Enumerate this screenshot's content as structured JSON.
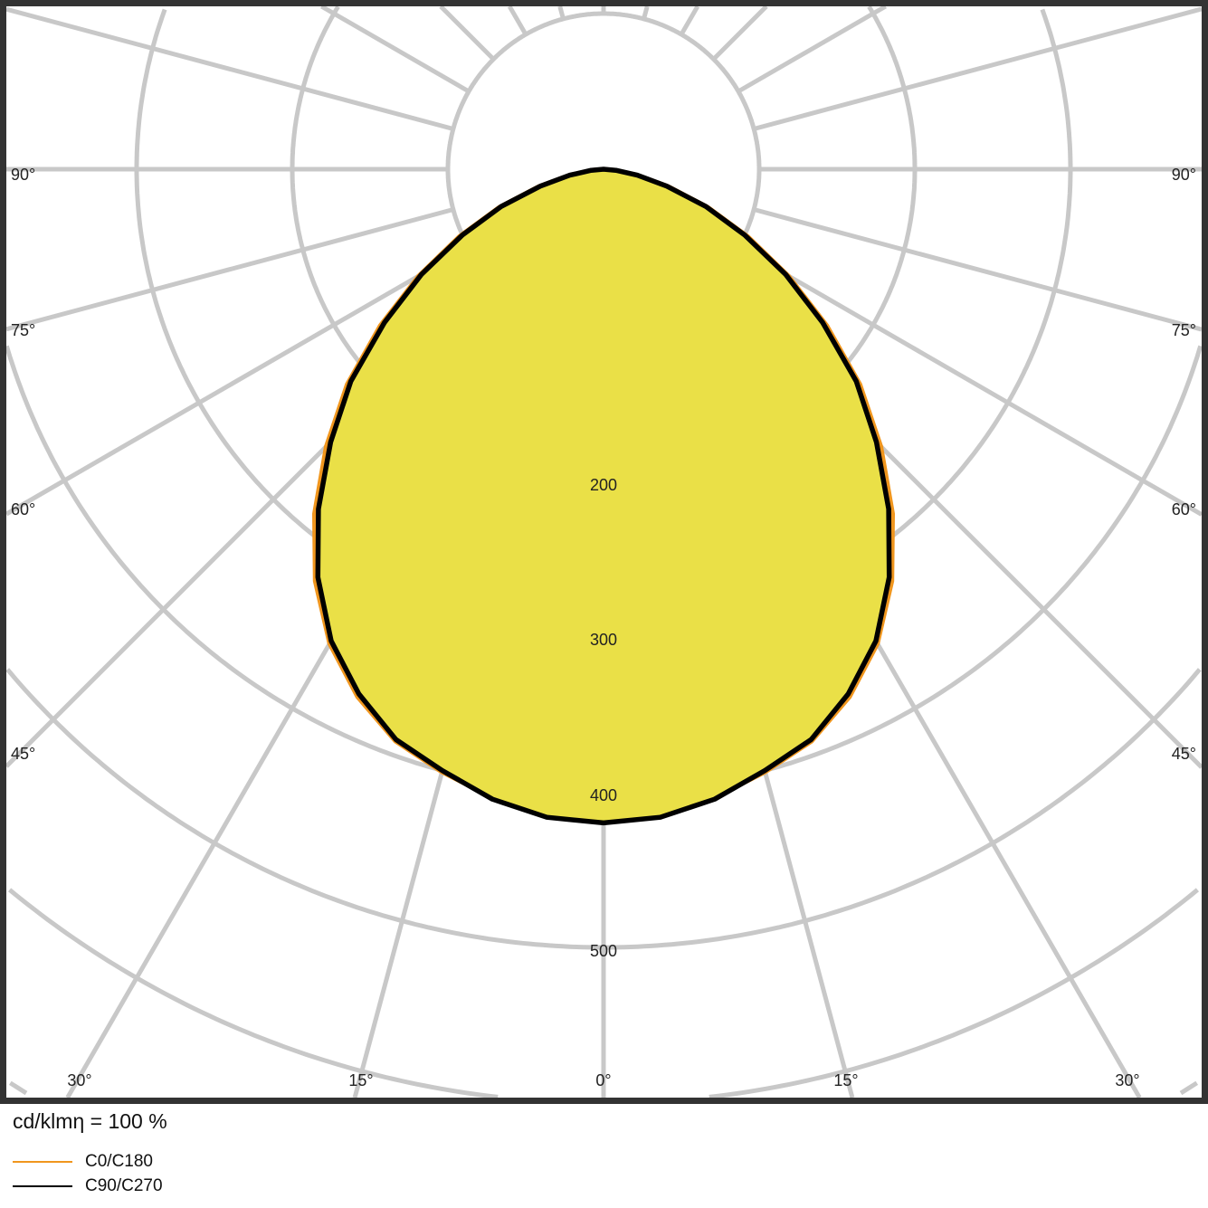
{
  "chart_data": {
    "type": "polar",
    "title": "",
    "unit_label": "cd/klmη = 100 %",
    "radial_ticks": [
      "200",
      "300",
      "400",
      "500"
    ],
    "radial_grid_values": [
      100,
      200,
      300,
      400,
      500,
      600,
      700
    ],
    "angle_grid_step_deg": 15,
    "angle_labels": {
      "left": [
        "90°",
        "75°",
        "60°",
        "45°",
        "30°",
        "15°"
      ],
      "bottom": [
        "30°",
        "15°",
        "0°",
        "15°",
        "30°"
      ],
      "right": [
        "90°",
        "75°",
        "60°",
        "45°"
      ]
    },
    "grid": true,
    "legend_position": "bottom-left",
    "angles_deg": [
      0,
      5,
      10,
      15,
      20,
      25,
      30,
      35,
      40,
      45,
      50,
      55,
      60,
      65,
      70,
      75,
      80,
      85,
      90
    ],
    "series": [
      {
        "name": "C0/C180",
        "color": "#f0961e",
        "values": [
          417,
          416,
          410,
          401,
          391,
          374,
          352,
          323,
          289,
          252,
          215,
          175,
          137,
          102,
          71,
          43,
          22,
          8,
          0
        ]
      },
      {
        "name": "C90/C270",
        "color": "#000000",
        "values": [
          420,
          418,
          411,
          400,
          390,
          372,
          350,
          320,
          285,
          248,
          212,
          172,
          135,
          100,
          70,
          42,
          22,
          8,
          0
        ]
      }
    ],
    "fill_color": "#e8f050",
    "grid_color": "#c8c8c8",
    "frame_color": "#333333"
  }
}
